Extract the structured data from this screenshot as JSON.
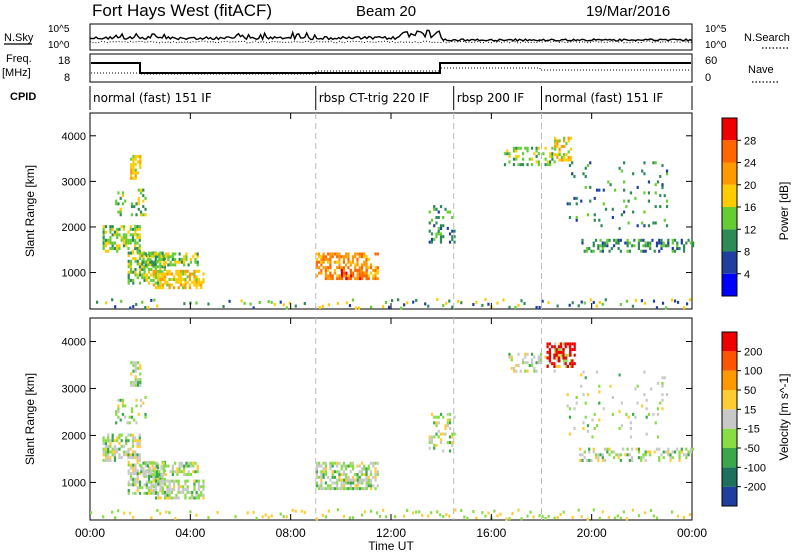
{
  "header": {
    "radar": "Fort Hays West (fitACF)",
    "beam": "Beam 20",
    "date": "19/Mar/2016"
  },
  "top_panel": {
    "left_label": "N.Sky",
    "right_label": "N.Search",
    "ticks_top": "10^5",
    "ticks_bottom": "10^0"
  },
  "freq_panel": {
    "left_label_1": "Freq.",
    "left_label_2": "[MHz]",
    "right_label": "Nave",
    "ticks_top": "18",
    "ticks_bottom": "8",
    "rticks_top": "60",
    "rticks_bottom": "0"
  },
  "cpid": {
    "label": "CPID",
    "segments": [
      {
        "start_h": 0,
        "end_h": 9.0,
        "name": "normal (fast) 151 IF"
      },
      {
        "start_h": 9.0,
        "end_h": 14.5,
        "name": "rbsp CT-trig 220 IF"
      },
      {
        "start_h": 14.5,
        "end_h": 18.0,
        "name": "rbsp 200 IF"
      },
      {
        "start_h": 18.0,
        "end_h": 24,
        "name": "normal (fast) 151 IF"
      }
    ]
  },
  "chart_data": [
    {
      "type": "heatmap",
      "title": "",
      "xlabel": "Time UT",
      "ylabel": "Slant Range [km]",
      "xticks": [
        "00:00",
        "04:00",
        "08:00",
        "12:00",
        "16:00",
        "20:00",
        "00:00"
      ],
      "yticks": [
        "1000",
        "2000",
        "3000",
        "4000"
      ],
      "ylim": [
        200,
        4500
      ],
      "colorbar": {
        "label": "Power [dB]",
        "ticks": [
          "4",
          "8",
          "12",
          "16",
          "20",
          "24",
          "28"
        ],
        "colors": [
          "#0000ff",
          "#1e3fa0",
          "#2e8b57",
          "#66cc33",
          "#ffcc00",
          "#ff9900",
          "#ff6600",
          "#ee0000"
        ]
      },
      "regions": [
        {
          "t0": 0.5,
          "t1": 2.0,
          "r0": 1500,
          "r1": 2100,
          "level": 3
        },
        {
          "t0": 1.5,
          "t1": 3.0,
          "r0": 800,
          "r1": 1500,
          "level": 3
        },
        {
          "t0": 2.5,
          "t1": 4.5,
          "r0": 700,
          "r1": 1100,
          "level": 4
        },
        {
          "t0": 2.0,
          "t1": 4.3,
          "r0": 1200,
          "r1": 1450,
          "level": 3
        },
        {
          "t0": 9.0,
          "t1": 11.5,
          "r0": 900,
          "r1": 1500,
          "level": 5
        },
        {
          "t0": 10.0,
          "t1": 11.0,
          "r0": 900,
          "r1": 1100,
          "level": 6
        }
      ]
    },
    {
      "type": "heatmap",
      "title": "",
      "xlabel": "Time UT",
      "ylabel": "Slant Range [km]",
      "xticks": [
        "00:00",
        "04:00",
        "08:00",
        "12:00",
        "16:00",
        "20:00",
        "00:00"
      ],
      "yticks": [
        "1000",
        "2000",
        "3000",
        "4000"
      ],
      "ylim": [
        200,
        4500
      ],
      "colorbar": {
        "label": "Velocity [m s^-1]",
        "ticks": [
          "200",
          "100",
          "50",
          "15",
          "-15",
          "-50",
          "-100",
          "-200"
        ],
        "colors": [
          "#1f3fa0",
          "#1e6f5c",
          "#3aa84a",
          "#88dd44",
          "#c8c8c8",
          "#ffcc33",
          "#ff9900",
          "#ff5500",
          "#ee0000"
        ]
      }
    }
  ]
}
